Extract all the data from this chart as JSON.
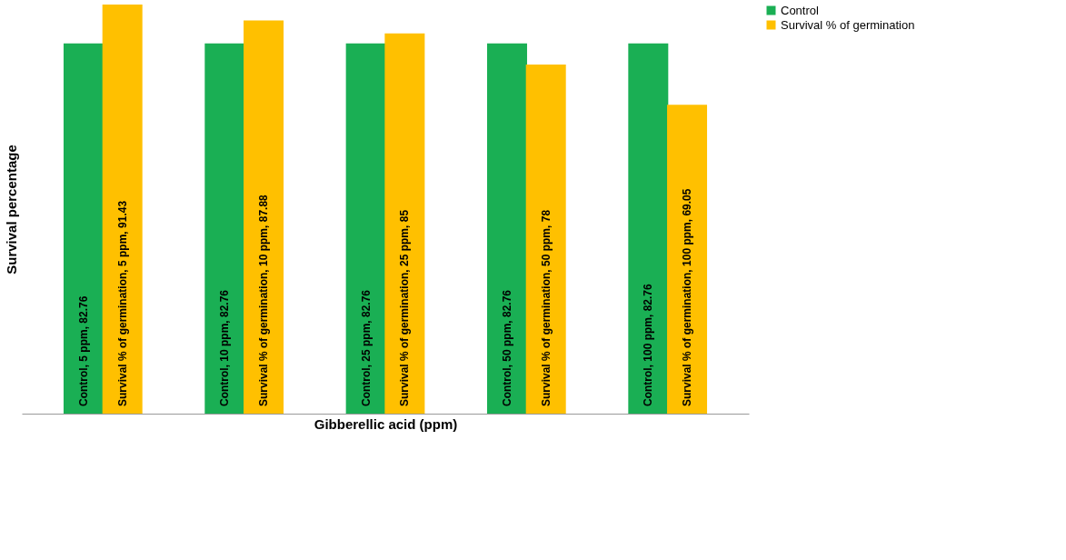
{
  "chart_data": {
    "type": "bar",
    "xlabel": "Gibberellic acid (ppm)",
    "ylabel": "Survival  percentage",
    "categories": [
      null,
      null,
      null,
      null,
      null
    ],
    "series": [
      {
        "name": "Control",
        "color": "#1aaf54",
        "values": [
          82.76,
          82.76,
          82.76,
          82.76,
          82.76
        ],
        "value_labels": [
          "Control, 5 ppm, 82.76",
          "Control, 10 ppm, 82.76",
          "Control, 25 ppm, 82.76",
          "Control, 50 ppm, 82.76",
          "Control, 100 ppm, 82.76"
        ]
      },
      {
        "name": "Survival % of germination",
        "color": "#ffc000",
        "values": [
          91.43,
          87.88,
          85,
          78,
          69.05
        ],
        "value_labels": [
          "Survival % of germination, 5 ppm, 91.43",
          "Survival % of germination, 10 ppm, 87.88",
          "Survival % of germination, 25 ppm, 85",
          "Survival % of germination, 50 ppm, 78",
          "Survival % of germination, 100 ppm, 69.05"
        ]
      }
    ],
    "legend": "right",
    "grid": false,
    "tick_labels": false
  }
}
